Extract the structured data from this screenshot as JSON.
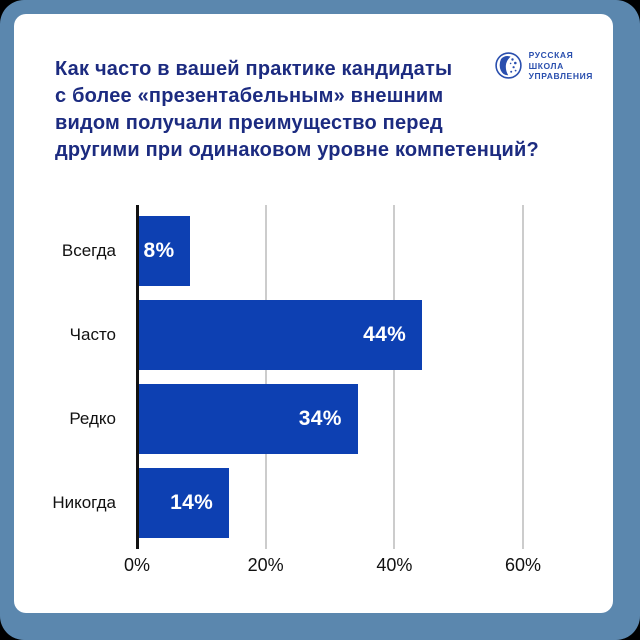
{
  "page": {
    "outer_bg": "#000000",
    "frame_color": "#5b87ae",
    "card_bg": "#ffffff"
  },
  "header": {
    "title_lines": [
      "Как часто в вашей практике кандидаты",
      "с более «презентабельным» внешним",
      "видом получали преимущество перед",
      "другими при одинаковом уровне компетенций?"
    ],
    "title_color": "#1c2b80",
    "logo": {
      "icon": "globe-logo-icon",
      "lines": [
        "РУССКАЯ",
        "ШКОЛА",
        "УПРАВЛЕНИЯ"
      ],
      "color": "#2a4fae"
    }
  },
  "chart_data": {
    "type": "bar",
    "orientation": "horizontal",
    "title": "Как часто в вашей практике кандидаты с более «презентабельным» внешним видом получали преимущество перед другими при одинаковом уровне компетенций?",
    "categories": [
      "Всегда",
      "Часто",
      "Редко",
      "Никогда"
    ],
    "values": [
      8,
      44,
      34,
      14
    ],
    "value_labels": [
      "8%",
      "44%",
      "34%",
      "14%"
    ],
    "x_ticks": [
      {
        "value": 0,
        "label": "0%"
      },
      {
        "value": 20,
        "label": "20%"
      },
      {
        "value": 40,
        "label": "40%"
      },
      {
        "value": 60,
        "label": "60%"
      }
    ],
    "xlim": [
      0,
      60
    ],
    "grid": true,
    "legend": false,
    "bar_color": "#0d40b2",
    "value_label_color": "#ffffff",
    "axis_text_color": "#111111",
    "gridline_color": "#cccccc",
    "axis_line_color": "#111111"
  }
}
